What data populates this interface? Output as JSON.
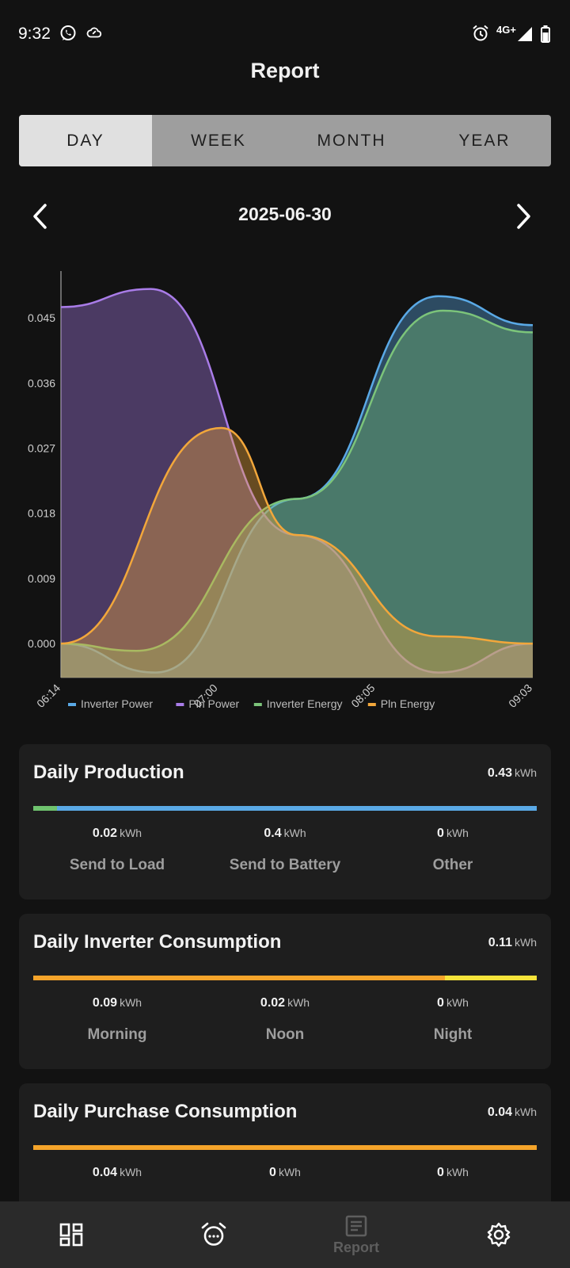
{
  "status_bar": {
    "time": "9:32",
    "network": "4G+"
  },
  "header": {
    "title": "Report"
  },
  "tabs": [
    {
      "label": "DAY",
      "active": true
    },
    {
      "label": "WEEK",
      "active": false
    },
    {
      "label": "MONTH",
      "active": false
    },
    {
      "label": "YEAR",
      "active": false
    }
  ],
  "date_nav": {
    "date": "2025-06-30"
  },
  "chart_data": {
    "type": "area",
    "x": [
      "06:14",
      "07:00",
      "08:05",
      "09:03"
    ],
    "y_ticks": [
      "0.000",
      "0.009",
      "0.018",
      "0.027",
      "0.036",
      "0.045"
    ],
    "ylim": [
      -0.0047,
      0.0506
    ],
    "legend_position": "bottom",
    "series": [
      {
        "name": "Inverter Power",
        "color": "#5aa9e6",
        "x": [
          0,
          0.2,
          0.5,
          0.8,
          1.0
        ],
        "values": [
          0.0,
          -0.004,
          0.02,
          0.048,
          0.044
        ]
      },
      {
        "name": "Pln Power",
        "color": "#a97ce8",
        "x": [
          0,
          0.19,
          0.5,
          0.8,
          1.0
        ],
        "values": [
          0.0465,
          0.049,
          0.015,
          -0.004,
          0.0
        ]
      },
      {
        "name": "Inverter Energy",
        "color": "#7cc47a",
        "x": [
          0,
          0.16,
          0.5,
          0.81,
          1.0
        ],
        "values": [
          0.0,
          -0.001,
          0.02,
          0.046,
          0.043
        ]
      },
      {
        "name": "Pln Energy",
        "color": "#f2a73b",
        "x": [
          0,
          0.34,
          0.5,
          0.8,
          1.0
        ],
        "values": [
          0.0,
          0.0298,
          0.015,
          0.001,
          0.0
        ]
      }
    ]
  },
  "cards": [
    {
      "title": "Daily Production",
      "total": "0.43",
      "unit": "kWh",
      "bar": [
        {
          "color": "#6fc36e",
          "fraction": 0.047
        },
        {
          "color": "#5aa9e6",
          "fraction": 0.953
        }
      ],
      "metrics": [
        {
          "value": "0.02",
          "unit": "kWh",
          "label": "Send to Load"
        },
        {
          "value": "0.4",
          "unit": "kWh",
          "label": "Send to Battery"
        },
        {
          "value": "0",
          "unit": "kWh",
          "label": "Other"
        }
      ]
    },
    {
      "title": "Daily Inverter Consumption",
      "total": "0.11",
      "unit": "kWh",
      "bar": [
        {
          "color": "#f5a42a",
          "fraction": 0.818
        },
        {
          "color": "#f5e33a",
          "fraction": 0.182
        }
      ],
      "metrics": [
        {
          "value": "0.09",
          "unit": "kWh",
          "label": "Morning"
        },
        {
          "value": "0.02",
          "unit": "kWh",
          "label": "Noon"
        },
        {
          "value": "0",
          "unit": "kWh",
          "label": "Night"
        }
      ]
    },
    {
      "title": "Daily Purchase Consumption",
      "total": "0.04",
      "unit": "kWh",
      "bar": [
        {
          "color": "#f5a42a",
          "fraction": 1.0
        }
      ],
      "metrics": [
        {
          "value": "0.04",
          "unit": "kWh",
          "label": ""
        },
        {
          "value": "0",
          "unit": "kWh",
          "label": ""
        },
        {
          "value": "0",
          "unit": "kWh",
          "label": ""
        }
      ]
    }
  ],
  "bottom_nav": [
    {
      "icon": "dashboard-icon",
      "label": "",
      "active": false
    },
    {
      "icon": "alarm-icon",
      "label": "",
      "active": false
    },
    {
      "icon": "report-icon",
      "label": "Report",
      "active": true
    },
    {
      "icon": "settings-icon",
      "label": "",
      "active": false
    }
  ]
}
